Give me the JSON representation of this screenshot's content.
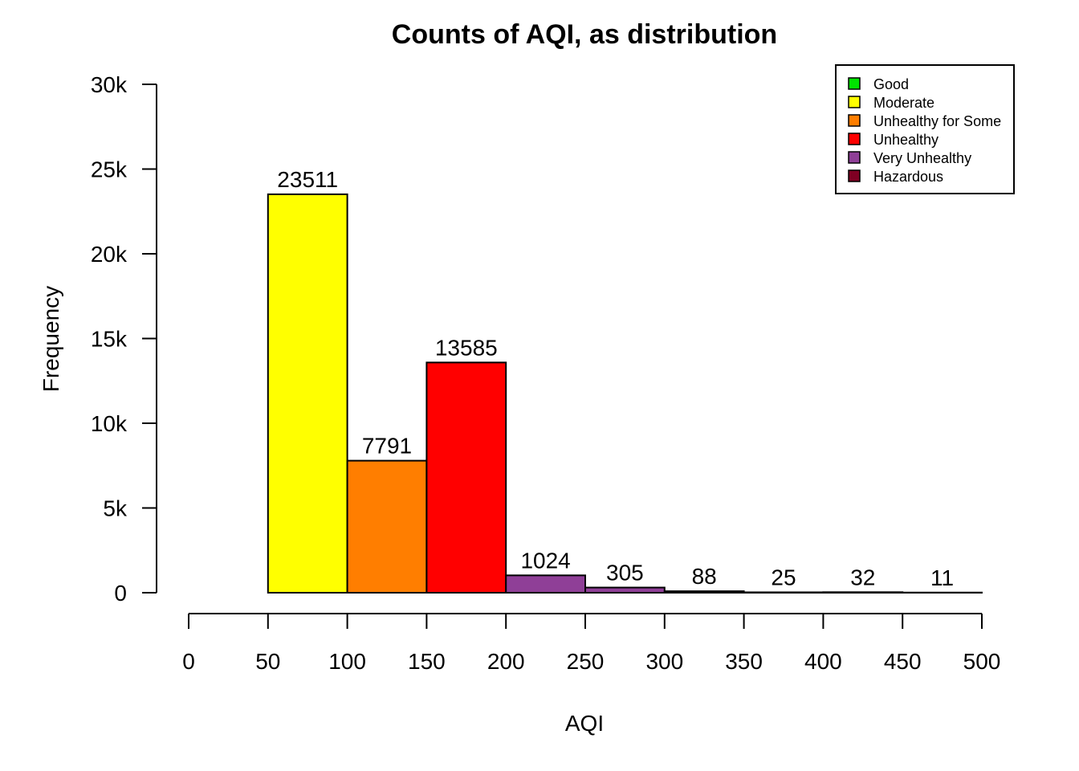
{
  "chart_data": {
    "type": "bar",
    "title": "Counts of AQI, as distribution",
    "xlabel": "AQI",
    "ylabel": "Frequency",
    "bins": [
      {
        "from": 50,
        "to": 100,
        "value": 23511,
        "category": "Moderate"
      },
      {
        "from": 100,
        "to": 150,
        "value": 7791,
        "category": "Unhealthy for Some"
      },
      {
        "from": 150,
        "to": 200,
        "value": 13585,
        "category": "Unhealthy"
      },
      {
        "from": 200,
        "to": 250,
        "value": 1024,
        "category": "Very Unhealthy"
      },
      {
        "from": 250,
        "to": 300,
        "value": 305,
        "category": "Very Unhealthy"
      },
      {
        "from": 300,
        "to": 350,
        "value": 88,
        "category": "Hazardous"
      },
      {
        "from": 350,
        "to": 400,
        "value": 25,
        "category": "Hazardous"
      },
      {
        "from": 400,
        "to": 450,
        "value": 32,
        "category": "Hazardous"
      },
      {
        "from": 450,
        "to": 500,
        "value": 11,
        "category": "Hazardous"
      }
    ],
    "xlim": [
      0,
      500
    ],
    "ylim": [
      0,
      30000
    ],
    "x_ticks": [
      0,
      50,
      100,
      150,
      200,
      250,
      300,
      350,
      400,
      450,
      500
    ],
    "x_tick_labels": [
      "0",
      "50",
      "100",
      "150",
      "200",
      "250",
      "300",
      "350",
      "400",
      "450",
      "500"
    ],
    "y_ticks": [
      0,
      5000,
      10000,
      15000,
      20000,
      25000,
      30000
    ],
    "y_tick_labels": [
      "0",
      "5k",
      "10k",
      "15k",
      "20k",
      "25k",
      "30k"
    ],
    "legend": {
      "position": "top-right",
      "entries": [
        {
          "label": "Good",
          "color": "#00e400"
        },
        {
          "label": "Moderate",
          "color": "#ffff00"
        },
        {
          "label": "Unhealthy for Some",
          "color": "#ff7e00"
        },
        {
          "label": "Unhealthy",
          "color": "#ff0000"
        },
        {
          "label": "Very Unhealthy",
          "color": "#8f3f97"
        },
        {
          "label": "Hazardous",
          "color": "#7e0023"
        }
      ]
    },
    "grid": false
  }
}
